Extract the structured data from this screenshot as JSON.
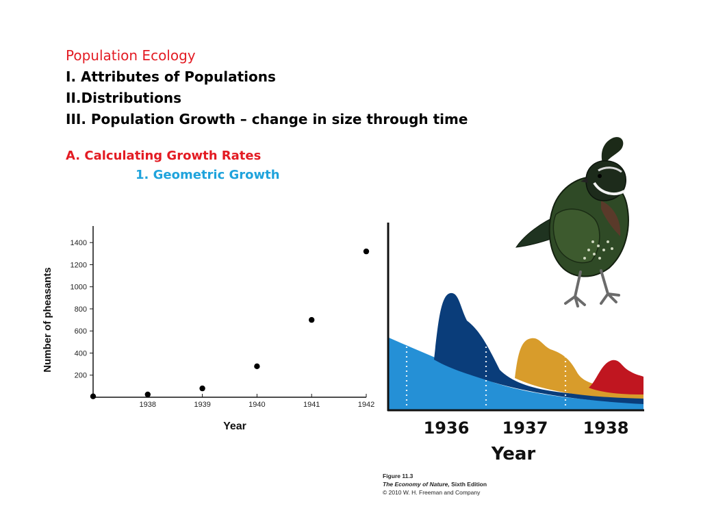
{
  "slide": {
    "heading": "Population Ecology",
    "outline": [
      "I. Attributes of Populations",
      "II.Distributions",
      "III. Population Growth – change in size through time"
    ],
    "section": "A. Calculating Growth Rates",
    "subsection": "1. Geometric Growth"
  },
  "colors": {
    "heading": "#e31b23",
    "section": "#e31b23",
    "subsection": "#1fa3dc",
    "series_light_blue": "#2590d6",
    "series_dark_blue": "#0a3d7a",
    "series_gold": "#d89c2b",
    "series_red": "#c01620"
  },
  "chart_data": [
    {
      "type": "scatter",
      "xlabel": "Year",
      "ylabel": "Number of pheasants",
      "xlim": [
        1937.0,
        1942.0
      ],
      "ylim": [
        0,
        1550
      ],
      "x_ticks": [
        1938,
        1939,
        1940,
        1941,
        1942
      ],
      "y_ticks": [
        200,
        400,
        600,
        800,
        1000,
        1200,
        1400
      ],
      "points": [
        {
          "x": 1937.0,
          "y": 8
        },
        {
          "x": 1938.0,
          "y": 25
        },
        {
          "x": 1939.0,
          "y": 80
        },
        {
          "x": 1940.0,
          "y": 280
        },
        {
          "x": 1941.0,
          "y": 700
        },
        {
          "x": 1942.0,
          "y": 1320
        }
      ]
    },
    {
      "type": "area",
      "xlabel": "Year",
      "categories": [
        "1936",
        "1937",
        "1938"
      ],
      "series_colors": [
        "series_light_blue",
        "series_dark_blue",
        "series_gold",
        "series_red"
      ]
    }
  ],
  "figure_caption": {
    "figure": "Figure 11.3",
    "book_title": "The Economy of Nature,",
    "edition": " Sixth Edition",
    "copyright": "© 2010 W. H. Freeman and Company"
  }
}
